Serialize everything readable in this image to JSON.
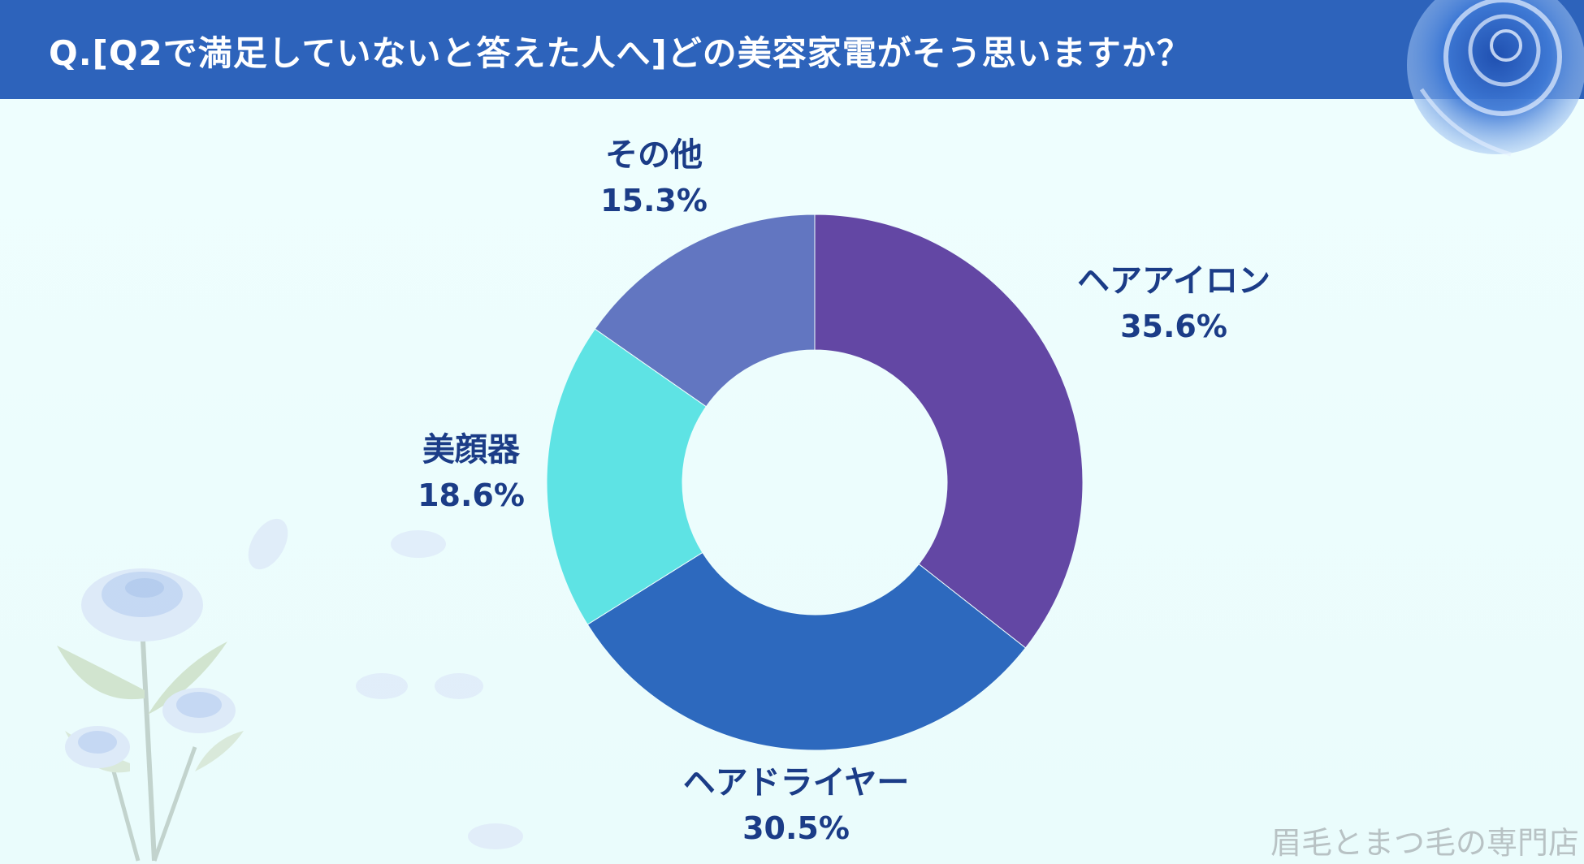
{
  "header": {
    "title": "Q.[Q2で満足していないと答えた人へ]どの美容家電がそう思いますか？"
  },
  "watermark": "眉毛とまつ毛の専門店",
  "colors": {
    "header_bg": "#2d63bb",
    "label_text": "#1b3c87",
    "background": "#eefdfd"
  },
  "chart_data": {
    "type": "pie",
    "style": "donut",
    "title": "",
    "categories": [
      "ヘアアイロン",
      "ヘアドライヤー",
      "美顔器",
      "その他"
    ],
    "values": [
      35.6,
      30.5,
      18.6,
      15.3
    ],
    "value_labels": [
      "35.6%",
      "30.5%",
      "18.6%",
      "15.3%"
    ],
    "colors": [
      "#6347a4",
      "#2d69be",
      "#5ee3e4",
      "#6276c1"
    ],
    "start_angle": "12 o'clock",
    "direction": "clockwise"
  }
}
